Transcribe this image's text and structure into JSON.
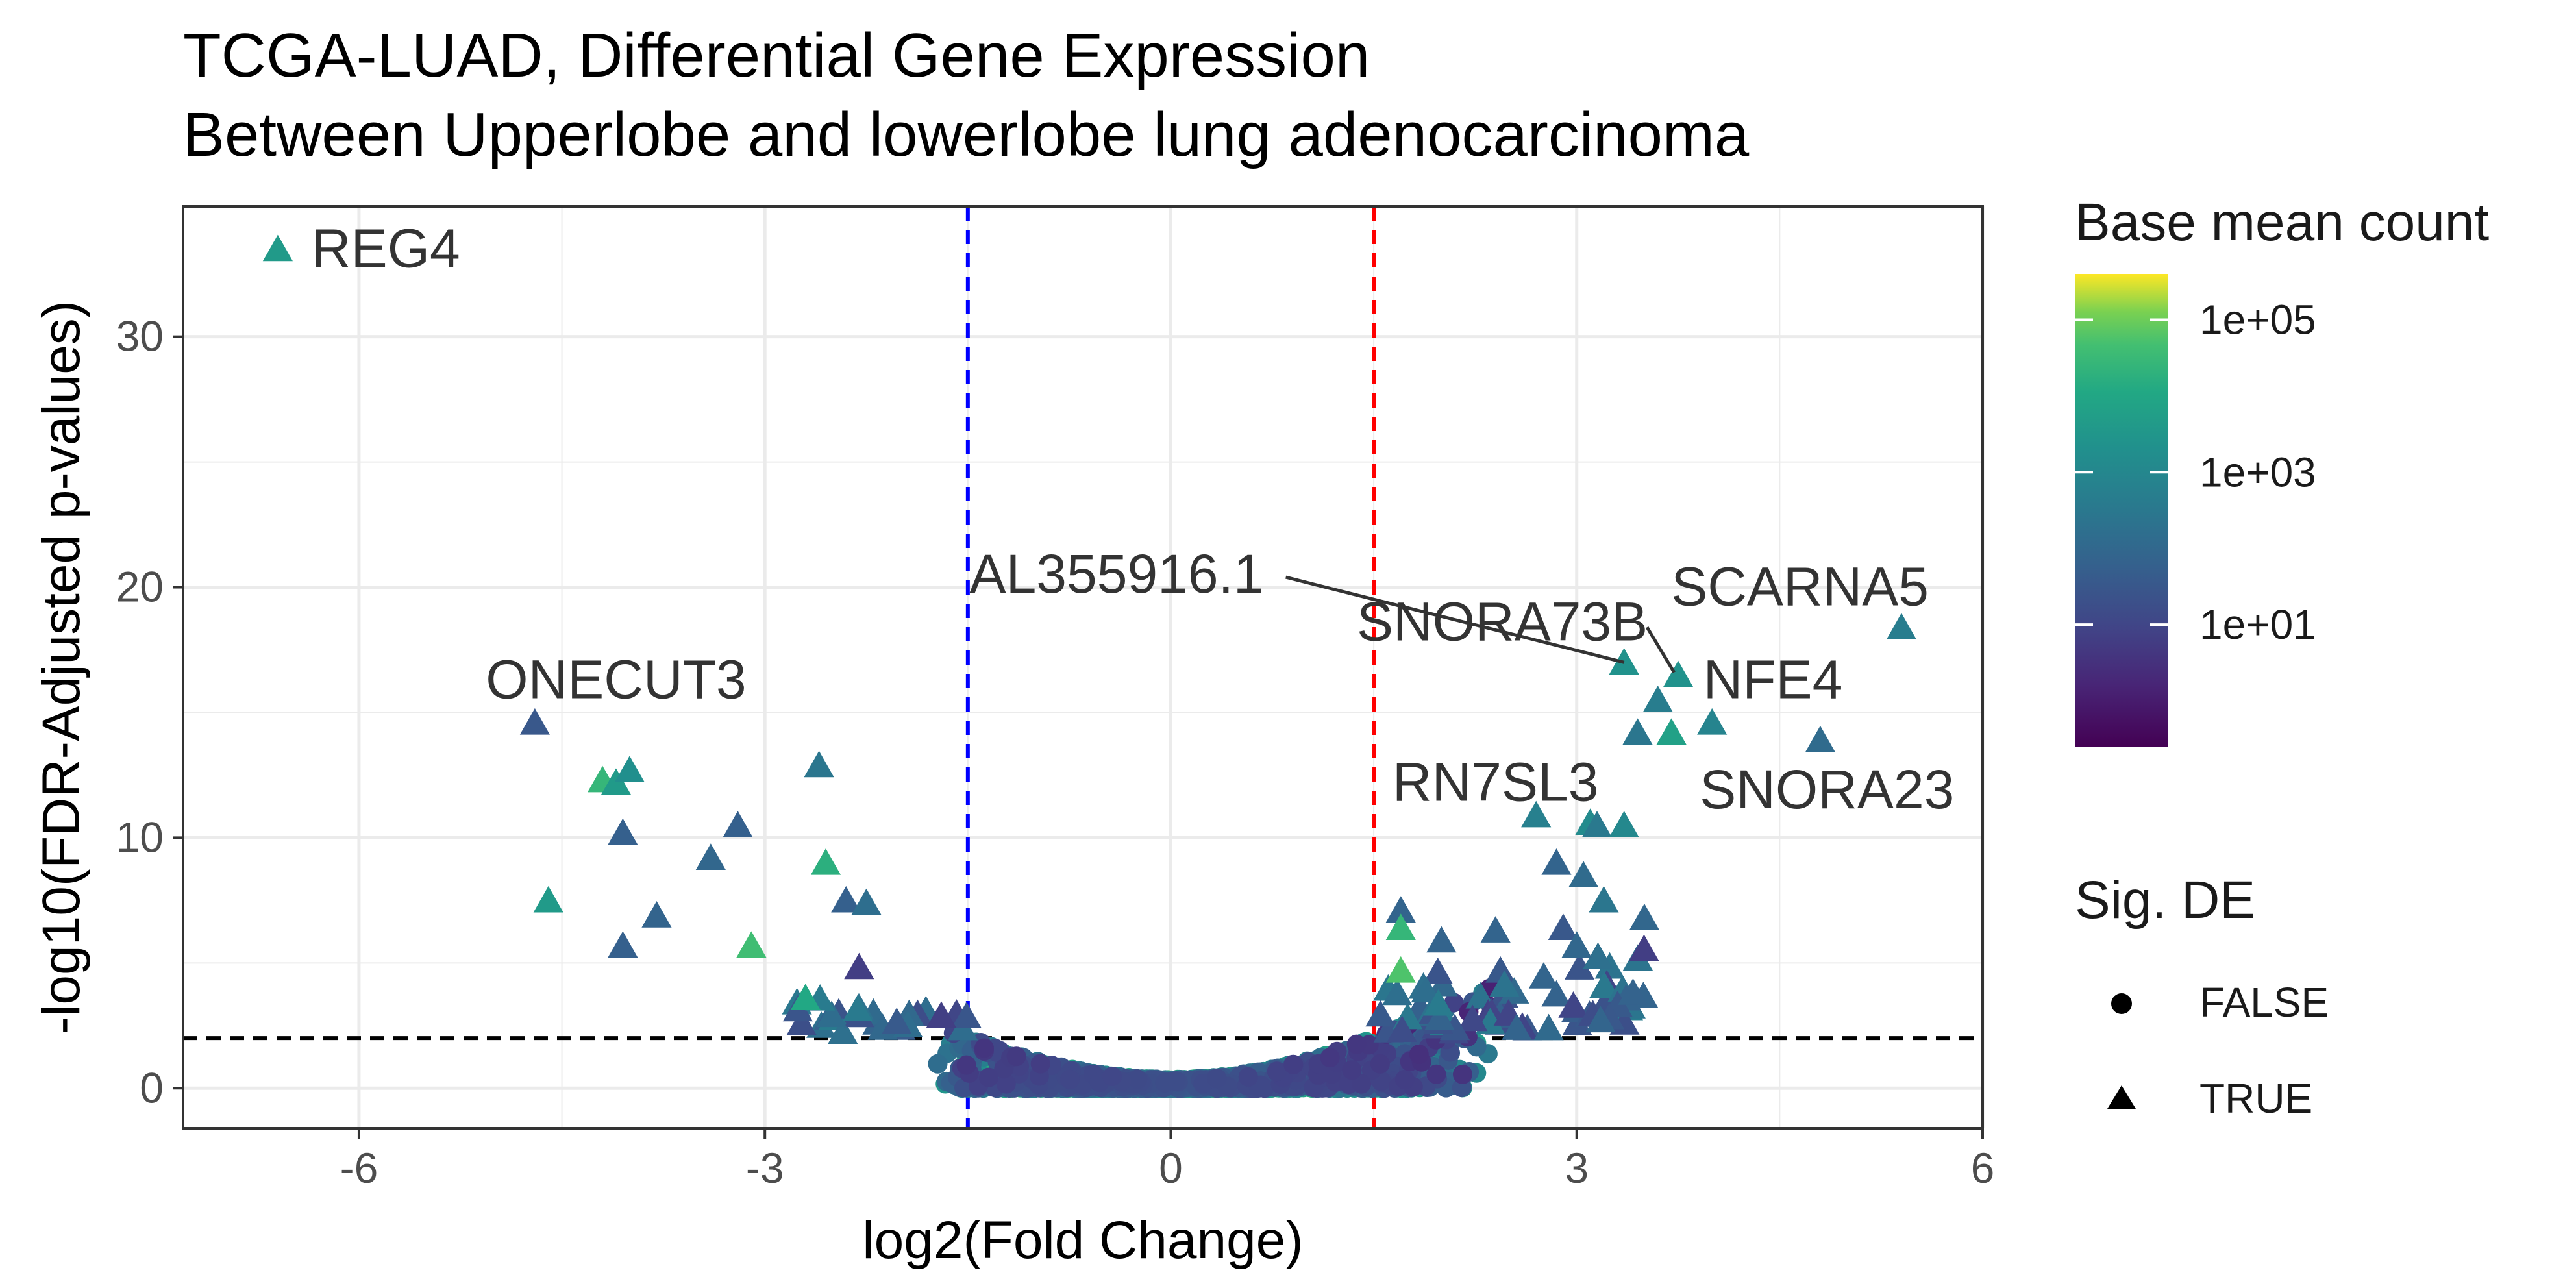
{
  "chart_data": {
    "type": "scatter",
    "title": "TCGA-LUAD, Differential Gene Expression",
    "subtitle": "Between Upperlobe and lowerlobe lung adenocarcinoma",
    "xlabel": "log2(Fold Change)",
    "ylabel": "-log10(FDR-Adjusted p-values)",
    "xlim": [
      -7.3,
      6.0
    ],
    "ylim": [
      -1.6,
      35.2
    ],
    "x_ticks": [
      -6,
      -3,
      0,
      3,
      6
    ],
    "x_tick_labels": [
      "-6",
      "-3",
      "0",
      "3",
      "6"
    ],
    "y_ticks": [
      0,
      10,
      20,
      30
    ],
    "y_tick_labels": [
      "0",
      "10",
      "20",
      "30"
    ],
    "grid": true,
    "reference_lines": {
      "vertical_blue": -1.5,
      "vertical_red": 1.5,
      "horizontal_black": 2.0
    },
    "reference_colors": {
      "blue": "#0000ff",
      "red": "#ff0000",
      "black": "#000000"
    },
    "color_legend": {
      "title": "Base mean count",
      "scale": "log10",
      "palette": "viridis",
      "ticks": [
        "1e+05",
        "1e+03",
        "1e+01"
      ]
    },
    "shape_legend": {
      "title": "Sig. DE",
      "items": [
        {
          "label": "FALSE",
          "shape": "circle"
        },
        {
          "label": "TRUE",
          "shape": "triangle"
        }
      ]
    },
    "background_cloud": {
      "shape": "circle",
      "description_points": "dense non-significant genes near the origin",
      "x_range": [
        -1.7,
        2.4
      ],
      "y_max": 5.0
    },
    "significant_points": [
      {
        "x": -6.6,
        "y": 33.5,
        "logmean": 3.0,
        "label": "REG4"
      },
      {
        "x": -4.7,
        "y": 14.6,
        "logmean": 1.2,
        "label": "ONECUT3"
      },
      {
        "x": -4.2,
        "y": 12.3,
        "logmean": 3.8
      },
      {
        "x": -4.1,
        "y": 12.2,
        "logmean": 3.0
      },
      {
        "x": -4.0,
        "y": 12.7,
        "logmean": 2.7
      },
      {
        "x": -4.05,
        "y": 10.2,
        "logmean": 1.4
      },
      {
        "x": -4.6,
        "y": 7.5,
        "logmean": 3.0
      },
      {
        "x": -4.05,
        "y": 5.7,
        "logmean": 1.4
      },
      {
        "x": -3.8,
        "y": 6.9,
        "logmean": 1.5
      },
      {
        "x": -3.4,
        "y": 9.2,
        "logmean": 1.6
      },
      {
        "x": -3.2,
        "y": 10.5,
        "logmean": 1.4
      },
      {
        "x": -3.1,
        "y": 5.7,
        "logmean": 4.0
      },
      {
        "x": -2.6,
        "y": 12.9,
        "logmean": 2.0
      },
      {
        "x": -2.55,
        "y": 9.0,
        "logmean": 3.6
      },
      {
        "x": -2.7,
        "y": 3.6,
        "logmean": 3.4
      },
      {
        "x": -2.4,
        "y": 7.5,
        "logmean": 1.4
      },
      {
        "x": -2.25,
        "y": 7.4,
        "logmean": 1.8
      },
      {
        "x": 3.35,
        "y": 17.0,
        "logmean": 2.8,
        "label": "AL355916.1"
      },
      {
        "x": 3.75,
        "y": 16.5,
        "logmean": 2.8,
        "label": "SNORA73B"
      },
      {
        "x": 5.4,
        "y": 18.4,
        "logmean": 2.2,
        "label": "SCARNA5"
      },
      {
        "x": 4.0,
        "y": 14.6,
        "logmean": 2.4,
        "label": "NFE4"
      },
      {
        "x": 4.8,
        "y": 13.9,
        "logmean": 1.7,
        "label": "SNORA23"
      },
      {
        "x": 2.7,
        "y": 10.9,
        "logmean": 2.3,
        "label": "RN7SL3"
      },
      {
        "x": 3.45,
        "y": 14.2,
        "logmean": 2.0
      },
      {
        "x": 3.6,
        "y": 15.5,
        "logmean": 2.2
      },
      {
        "x": 3.7,
        "y": 14.2,
        "logmean": 3.2
      },
      {
        "x": 3.1,
        "y": 10.6,
        "logmean": 2.6
      },
      {
        "x": 3.15,
        "y": 10.5,
        "logmean": 2.1
      },
      {
        "x": 3.35,
        "y": 10.5,
        "logmean": 2.5
      },
      {
        "x": 2.85,
        "y": 9.0,
        "logmean": 1.5
      },
      {
        "x": 3.05,
        "y": 8.5,
        "logmean": 1.7
      },
      {
        "x": 3.2,
        "y": 7.5,
        "logmean": 2.0
      },
      {
        "x": 3.5,
        "y": 6.8,
        "logmean": 1.6
      },
      {
        "x": 1.7,
        "y": 7.1,
        "logmean": 1.5
      },
      {
        "x": 1.7,
        "y": 6.4,
        "logmean": 3.8
      },
      {
        "x": 1.7,
        "y": 4.7,
        "logmean": 4.2
      },
      {
        "x": 2.0,
        "y": 5.9,
        "logmean": 1.5
      },
      {
        "x": 2.4,
        "y": 6.3,
        "logmean": 1.5
      },
      {
        "x": 2.9,
        "y": 6.4,
        "logmean": 1.2
      },
      {
        "x": 3.0,
        "y": 5.7,
        "logmean": 1.6
      }
    ],
    "labels": [
      {
        "text": "REG4",
        "x": -6.35,
        "y": 33.5,
        "anchor": "start"
      },
      {
        "text": "ONECUT3",
        "x": -4.1,
        "y": 16.3,
        "anchor": "middle"
      },
      {
        "text": "AL355916.1",
        "x": -0.4,
        "y": 20.5,
        "anchor": "middle",
        "leader_to": [
          3.35,
          17.0
        ],
        "leader_from": [
          0.85,
          20.4
        ]
      },
      {
        "text": "SNORA73B",
        "x": 2.45,
        "y": 18.6,
        "anchor": "middle",
        "leader_to": [
          3.72,
          16.6
        ],
        "leader_from": [
          3.52,
          18.4
        ]
      },
      {
        "text": "SCARNA5",
        "x": 4.65,
        "y": 20.0,
        "anchor": "middle"
      },
      {
        "text": "NFE4",
        "x": 4.45,
        "y": 16.3,
        "anchor": "middle"
      },
      {
        "text": "RN7SL3",
        "x": 2.4,
        "y": 12.2,
        "anchor": "middle"
      },
      {
        "text": "SNORA23",
        "x": 4.85,
        "y": 11.9,
        "anchor": "middle"
      }
    ]
  }
}
